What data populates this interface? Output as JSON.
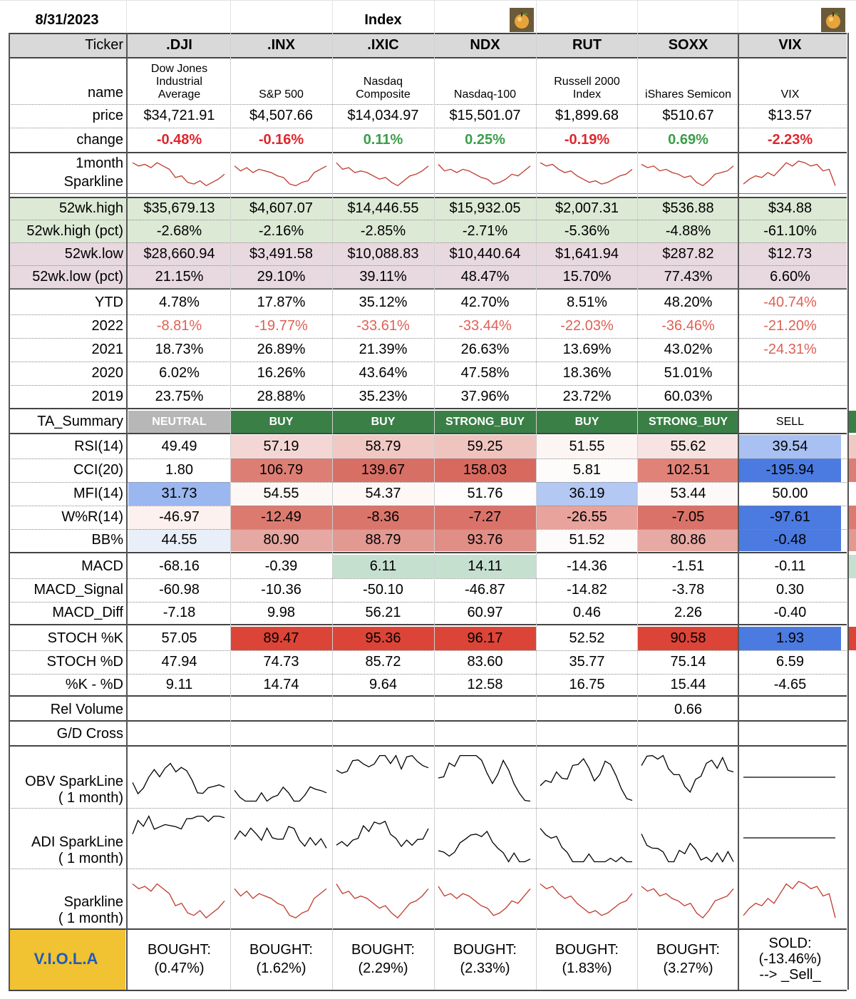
{
  "top": {
    "date": "8/31/2023",
    "group_title": "Index"
  },
  "row_labels": {
    "ticker": "Ticker",
    "name": "name",
    "price": "price",
    "change": "change",
    "sparkline": [
      "1month",
      "Sparkline"
    ],
    "high52": "52wk.high",
    "high52_pct": "52wk.high (pct)",
    "low52": "52wk.low",
    "low52_pct": "52wk.low (pct)",
    "ytd": "YTD",
    "y2022": "2022",
    "y2021": "2021",
    "y2020": "2020",
    "y2019": "2019",
    "ta_summary": "TA_Summary",
    "rsi": "RSI(14)",
    "cci": "CCI(20)",
    "mfi": "MFI(14)",
    "wr": "W%R(14)",
    "bb": "BB%",
    "macd": "MACD",
    "macd_signal": "MACD_Signal",
    "macd_diff": "MACD_Diff",
    "stoch_k": "STOCH %K",
    "stoch_d": "STOCH %D",
    "k_minus_d": "%K - %D",
    "rel_volume": "Rel Volume",
    "gd_cross": "G/D Cross",
    "obv": [
      "OBV SparkLine",
      "( 1 month)"
    ],
    "adi": [
      "ADI SparkLine",
      "( 1 month)"
    ],
    "spark2": [
      "Sparkline",
      "( 1 month)"
    ],
    "viola": "V.I.O.L.A"
  },
  "colors": {
    "green_text": "#3b9e4a",
    "red_text": "#e0262d",
    "red_soft": "#e06055",
    "band_green": "#dce9d5",
    "band_pink": "#e8d9e1",
    "buy": "#3a7f46",
    "neutral": "#b7b7b7",
    "viola_bg": "#f1c232",
    "viola_text": "#1f5bbf"
  },
  "icons": [
    "apple-logo-icon",
    "apple-logo-icon"
  ],
  "tickers": [
    {
      "symbol": ".DJI",
      "name_lines": [
        "Dow Jones",
        "Industrial",
        "Average"
      ],
      "price": "$34,721.91",
      "change": "-0.48%",
      "dir": "down",
      "high52": "$35,679.13",
      "high52_pct": "-2.68%",
      "low52": "$28,660.94",
      "low52_pct": "21.15%",
      "ytd": "4.78%",
      "y2022": "-8.81%",
      "y2021": "18.73%",
      "y2020": "6.02%",
      "y2019": "23.75%",
      "ta": "NEUTRAL",
      "rsi": "49.49",
      "cci": "1.80",
      "mfi": "31.73",
      "wr": "-46.97",
      "bb": "44.55",
      "macd": "-68.16",
      "macd_signal": "-60.98",
      "macd_diff": "-7.18",
      "stoch_k": "57.05",
      "stoch_d": "47.94",
      "k_minus_d": "9.11",
      "rel_volume": "",
      "gd_cross": "",
      "viola": [
        "BOUGHT:",
        "(0.47%)"
      ]
    },
    {
      "symbol": ".INX",
      "name_lines": [
        "S&P 500"
      ],
      "price": "$4,507.66",
      "change": "-0.16%",
      "dir": "down",
      "high52": "$4,607.07",
      "high52_pct": "-2.16%",
      "low52": "$3,491.58",
      "low52_pct": "29.10%",
      "ytd": "17.87%",
      "y2022": "-19.77%",
      "y2021": "26.89%",
      "y2020": "16.26%",
      "y2019": "28.88%",
      "ta": "BUY",
      "rsi": "57.19",
      "cci": "106.79",
      "mfi": "54.55",
      "wr": "-12.49",
      "bb": "80.90",
      "macd": "-0.39",
      "macd_signal": "-10.36",
      "macd_diff": "9.98",
      "stoch_k": "89.47",
      "stoch_d": "74.73",
      "k_minus_d": "14.74",
      "rel_volume": "",
      "gd_cross": "",
      "viola": [
        "BOUGHT:",
        "(1.62%)"
      ]
    },
    {
      "symbol": ".IXIC",
      "name_lines": [
        "Nasdaq",
        "Composite"
      ],
      "price": "$14,034.97",
      "change": "0.11%",
      "dir": "up",
      "high52": "$14,446.55",
      "high52_pct": "-2.85%",
      "low52": "$10,088.83",
      "low52_pct": "39.11%",
      "ytd": "35.12%",
      "y2022": "-33.61%",
      "y2021": "21.39%",
      "y2020": "43.64%",
      "y2019": "35.23%",
      "ta": "BUY",
      "rsi": "58.79",
      "cci": "139.67",
      "mfi": "54.37",
      "wr": "-8.36",
      "bb": "88.79",
      "macd": "6.11",
      "macd_signal": "-50.10",
      "macd_diff": "56.21",
      "stoch_k": "95.36",
      "stoch_d": "85.72",
      "k_minus_d": "9.64",
      "rel_volume": "",
      "gd_cross": "",
      "viola": [
        "BOUGHT:",
        "(2.29%)"
      ]
    },
    {
      "symbol": "NDX",
      "name_lines": [
        "Nasdaq-100"
      ],
      "price": "$15,501.07",
      "change": "0.25%",
      "dir": "up",
      "high52": "$15,932.05",
      "high52_pct": "-2.71%",
      "low52": "$10,440.64",
      "low52_pct": "48.47%",
      "ytd": "42.70%",
      "y2022": "-33.44%",
      "y2021": "26.63%",
      "y2020": "47.58%",
      "y2019": "37.96%",
      "ta": "STRONG_BUY",
      "rsi": "59.25",
      "cci": "158.03",
      "mfi": "51.76",
      "wr": "-7.27",
      "bb": "93.76",
      "macd": "14.11",
      "macd_signal": "-46.87",
      "macd_diff": "60.97",
      "stoch_k": "96.17",
      "stoch_d": "83.60",
      "k_minus_d": "12.58",
      "rel_volume": "",
      "gd_cross": "",
      "viola": [
        "BOUGHT:",
        "(2.33%)"
      ]
    },
    {
      "symbol": "RUT",
      "name_lines": [
        "Russell 2000",
        "Index"
      ],
      "price": "$1,899.68",
      "change": "-0.19%",
      "dir": "down",
      "high52": "$2,007.31",
      "high52_pct": "-5.36%",
      "low52": "$1,641.94",
      "low52_pct": "15.70%",
      "ytd": "8.51%",
      "y2022": "-22.03%",
      "y2021": "13.69%",
      "y2020": "18.36%",
      "y2019": "23.72%",
      "ta": "BUY",
      "rsi": "51.55",
      "cci": "5.81",
      "mfi": "36.19",
      "wr": "-26.55",
      "bb": "51.52",
      "macd": "-14.36",
      "macd_signal": "-14.82",
      "macd_diff": "0.46",
      "stoch_k": "52.52",
      "stoch_d": "35.77",
      "k_minus_d": "16.75",
      "rel_volume": "",
      "gd_cross": "",
      "viola": [
        "BOUGHT:",
        "(1.83%)"
      ]
    },
    {
      "symbol": "SOXX",
      "name_lines": [
        "iShares Semicon"
      ],
      "price": "$510.67",
      "change": "0.69%",
      "dir": "up",
      "high52": "$536.88",
      "high52_pct": "-4.88%",
      "low52": "$287.82",
      "low52_pct": "77.43%",
      "ytd": "48.20%",
      "y2022": "-36.46%",
      "y2021": "43.02%",
      "y2020": "51.01%",
      "y2019": "60.03%",
      "ta": "STRONG_BUY",
      "rsi": "55.62",
      "cci": "102.51",
      "mfi": "53.44",
      "wr": "-7.05",
      "bb": "80.86",
      "macd": "-1.51",
      "macd_signal": "-3.78",
      "macd_diff": "2.26",
      "stoch_k": "90.58",
      "stoch_d": "75.14",
      "k_minus_d": "15.44",
      "rel_volume": "0.66",
      "gd_cross": "",
      "viola": [
        "BOUGHT:",
        "(3.27%)"
      ]
    },
    {
      "symbol": "VIX",
      "name_lines": [
        "VIX"
      ],
      "price": "$13.57",
      "change": "-2.23%",
      "dir": "down",
      "high52": "$34.88",
      "high52_pct": "-61.10%",
      "low52": "$12.73",
      "low52_pct": "6.60%",
      "ytd": "-40.74%",
      "y2022": "-21.20%",
      "y2021": "-24.31%",
      "y2020": "",
      "y2019": "",
      "ta": "SELL",
      "rsi": "39.54",
      "cci": "-195.94",
      "mfi": "50.00",
      "wr": "-97.61",
      "bb": "-0.48",
      "macd": "-0.11",
      "macd_signal": "0.30",
      "macd_diff": "-0.40",
      "stoch_k": "1.93",
      "stoch_d": "6.59",
      "k_minus_d": "-4.65",
      "rel_volume": "",
      "gd_cross": "",
      "viola": [
        "SOLD:",
        "(-13.46%)",
        "--> _Sell_"
      ]
    }
  ]
}
